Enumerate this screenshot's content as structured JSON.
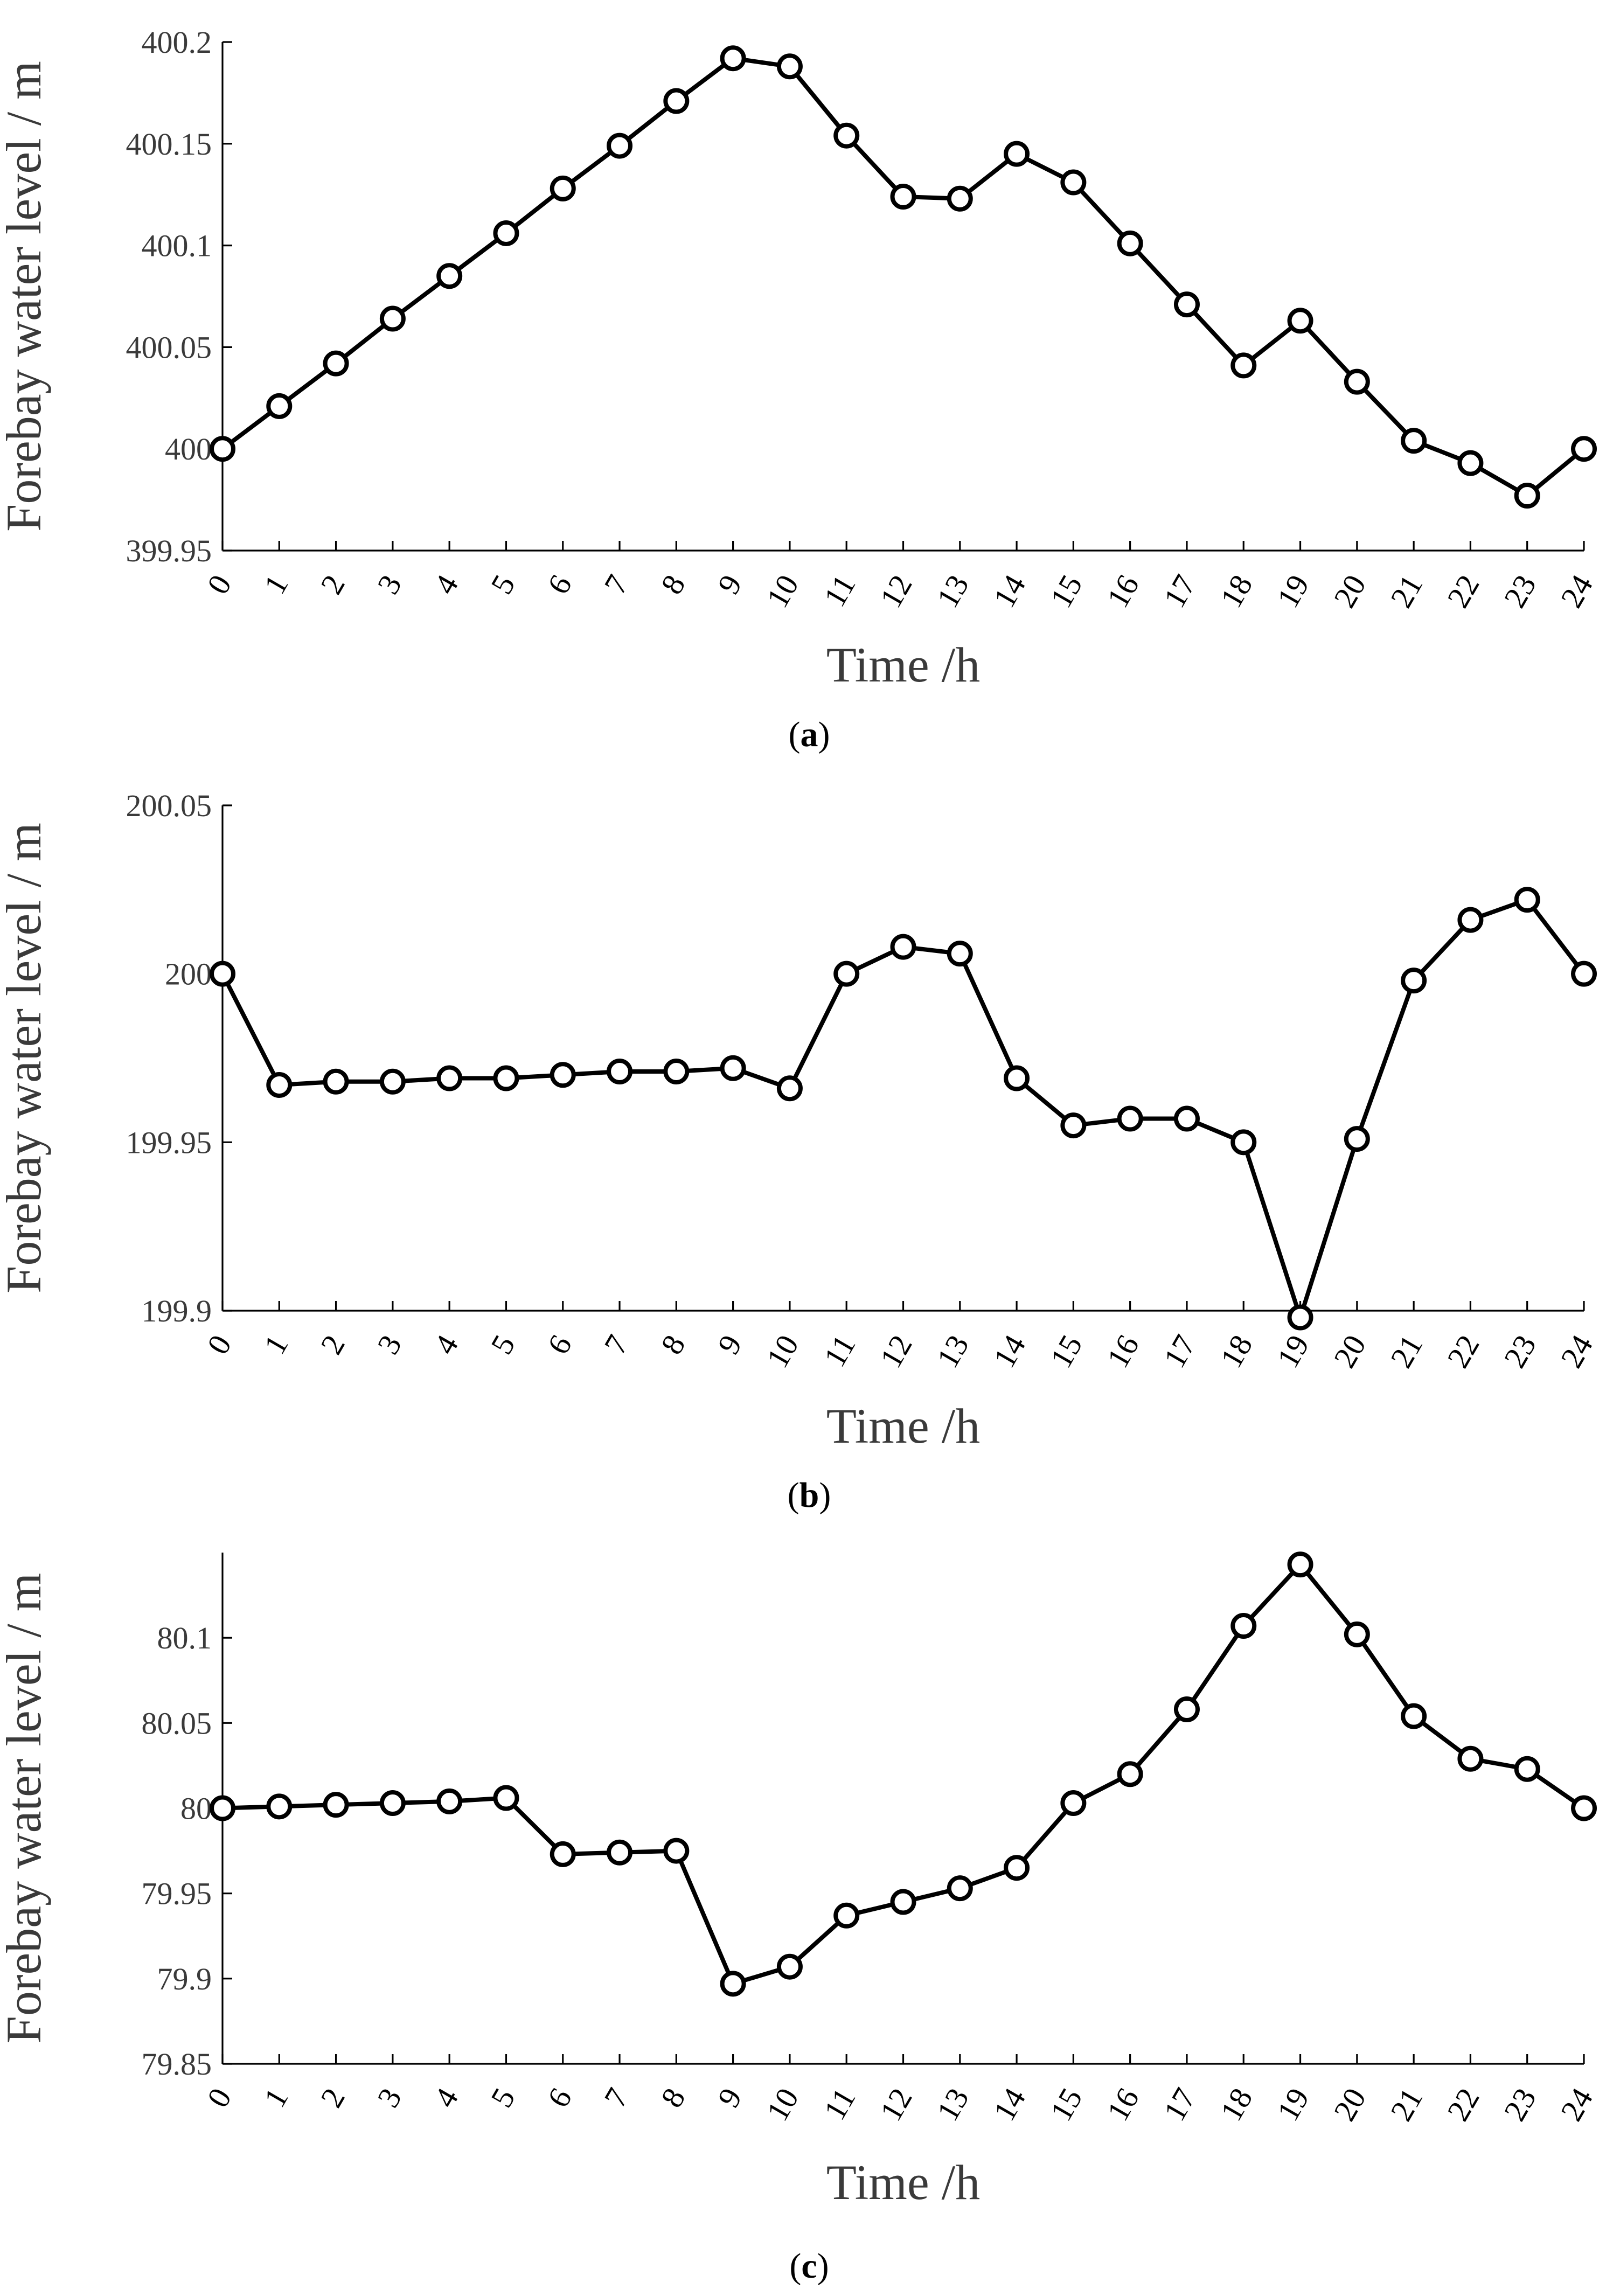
{
  "chart_data": [
    {
      "type": "line",
      "caption": {
        "open": "(",
        "letter": "a",
        "close": ")"
      },
      "xlabel": "Time /h",
      "ylabel": "Forebay water level / m",
      "x": [
        0,
        1,
        2,
        3,
        4,
        5,
        6,
        7,
        8,
        9,
        10,
        11,
        12,
        13,
        14,
        15,
        16,
        17,
        18,
        19,
        20,
        21,
        22,
        23,
        24
      ],
      "x_tick_labels": [
        "0",
        "1",
        "2",
        "3",
        "4",
        "5",
        "6",
        "7",
        "8",
        "9",
        "10",
        "11",
        "12",
        "13",
        "14",
        "15",
        "16",
        "17",
        "18",
        "19",
        "20",
        "21",
        "22",
        "23",
        "24"
      ],
      "ylim": [
        399.95,
        400.2
      ],
      "y_ticks": [
        399.95,
        400,
        400.05,
        400.1,
        400.15,
        400.2
      ],
      "y_tick_labels": [
        "399.95",
        "400",
        "400.05",
        "400.1",
        "400.15",
        "400.2"
      ],
      "series": [
        {
          "name": "Forebay water level",
          "values": [
            400.0,
            400.021,
            400.042,
            400.064,
            400.085,
            400.106,
            400.128,
            400.149,
            400.171,
            400.192,
            400.188,
            400.154,
            400.124,
            400.123,
            400.145,
            400.131,
            400.101,
            400.071,
            400.041,
            400.063,
            400.033,
            400.004,
            399.993,
            399.977,
            400.0
          ]
        }
      ]
    },
    {
      "type": "line",
      "caption": {
        "open": "(",
        "letter": "b",
        "close": ")"
      },
      "xlabel": "Time /h",
      "ylabel": "Forebay water level / m",
      "x": [
        0,
        1,
        2,
        3,
        4,
        5,
        6,
        7,
        8,
        9,
        10,
        11,
        12,
        13,
        14,
        15,
        16,
        17,
        18,
        19,
        20,
        21,
        22,
        23,
        24
      ],
      "x_tick_labels": [
        "0",
        "1",
        "2",
        "3",
        "4",
        "5",
        "6",
        "7",
        "8",
        "9",
        "10",
        "11",
        "12",
        "13",
        "14",
        "15",
        "16",
        "17",
        "18",
        "19",
        "20",
        "21",
        "22",
        "23",
        "24"
      ],
      "ylim": [
        199.9,
        200.05
      ],
      "y_ticks": [
        199.9,
        199.95,
        200,
        200.05
      ],
      "y_tick_labels": [
        "199.9",
        "199.95",
        "200",
        "200.05"
      ],
      "series": [
        {
          "name": "Forebay water level",
          "values": [
            200.0,
            199.967,
            199.968,
            199.968,
            199.969,
            199.969,
            199.97,
            199.971,
            199.971,
            199.972,
            199.966,
            200.0,
            200.008,
            200.006,
            199.969,
            199.955,
            199.957,
            199.957,
            199.95,
            199.898,
            199.951,
            199.998,
            200.016,
            200.022,
            200.0
          ]
        }
      ]
    },
    {
      "type": "line",
      "caption": {
        "open": "(",
        "letter": "c",
        "close": ")"
      },
      "xlabel": "Time /h",
      "ylabel": "Forebay water level / m",
      "x": [
        0,
        1,
        2,
        3,
        4,
        5,
        6,
        7,
        8,
        9,
        10,
        11,
        12,
        13,
        14,
        15,
        16,
        17,
        18,
        19,
        20,
        21,
        22,
        23,
        24
      ],
      "x_tick_labels": [
        "0",
        "1",
        "2",
        "3",
        "4",
        "5",
        "6",
        "7",
        "8",
        "9",
        "10",
        "11",
        "12",
        "13",
        "14",
        "15",
        "16",
        "17",
        "18",
        "19",
        "20",
        "21",
        "22",
        "23",
        "24"
      ],
      "ylim": [
        79.85,
        80.15
      ],
      "y_ticks": [
        79.85,
        79.9,
        79.95,
        80,
        80.05,
        80.1
      ],
      "y_tick_labels": [
        "79.85",
        "79.9",
        "79.95",
        "80",
        "80.05",
        "80.1"
      ],
      "series": [
        {
          "name": "Forebay water level",
          "values": [
            80.0,
            80.001,
            80.002,
            80.003,
            80.004,
            80.006,
            79.973,
            79.974,
            79.975,
            79.897,
            79.907,
            79.937,
            79.945,
            79.953,
            79.965,
            80.003,
            80.02,
            80.058,
            80.107,
            80.143,
            80.102,
            80.054,
            80.029,
            80.023,
            80.0
          ]
        }
      ]
    }
  ]
}
